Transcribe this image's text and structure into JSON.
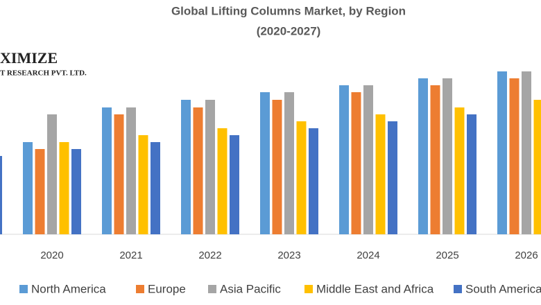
{
  "chart_data": {
    "type": "bar",
    "title": "Global Lifting Columns Market, by Region",
    "subtitle": "(2020-2027)",
    "logo": {
      "name": "XIMIZE",
      "tagline": "T RESEARCH PVT. LTD."
    },
    "categories": [
      null,
      "2020",
      "2021",
      "2022",
      "2023",
      "2024",
      "2025",
      "2026"
    ],
    "series": [
      {
        "name": "North America",
        "color": "#5b9bd5",
        "values": [
          null,
          133,
          183,
          194,
          205,
          215,
          225,
          235
        ]
      },
      {
        "name": "Europe",
        "color": "#ed7d31",
        "values": [
          null,
          123,
          173,
          183,
          194,
          205,
          215,
          225
        ]
      },
      {
        "name": "Asia Pacific",
        "color": "#a5a5a5",
        "values": [
          null,
          173,
          183,
          194,
          205,
          215,
          225,
          235
        ]
      },
      {
        "name": "Middle East and Africa",
        "color": "#ffc000",
        "values": [
          null,
          133,
          143,
          153,
          163,
          173,
          183,
          194
        ]
      },
      {
        "name": "South America",
        "color": "#4472c4",
        "values": [
          113,
          123,
          133,
          143,
          153,
          163,
          173,
          null
        ]
      }
    ],
    "ylim": [
      0,
      250
    ],
    "grid": false,
    "legend": "bottom"
  }
}
